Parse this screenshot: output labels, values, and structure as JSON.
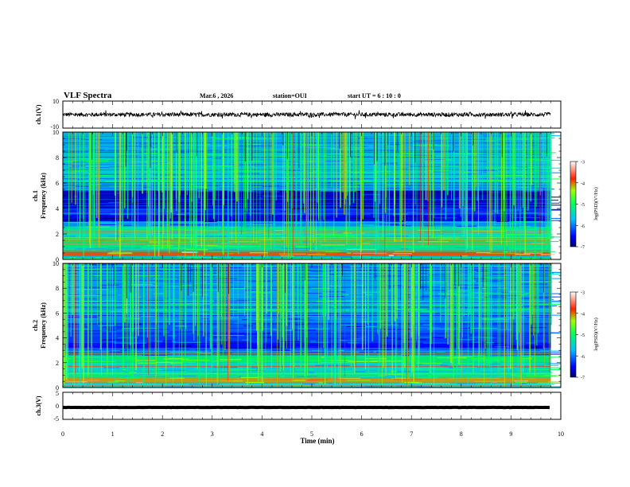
{
  "header": {
    "title": "VLF Spectra",
    "date": "Mar.6  , 2026",
    "station": "station=OUI",
    "start_ut": "start  UT  =   6  : 10 : 0"
  },
  "chart_data": {
    "type": "heatmap",
    "x_label": "Time  (min)",
    "x_range": [
      0,
      10
    ],
    "x_ticks": [
      "0",
      "1",
      "2",
      "3",
      "4",
      "5",
      "6",
      "7",
      "8",
      "9",
      "10"
    ],
    "data_end_min": 9.8,
    "panels": [
      {
        "id": "ch1-waveform",
        "type": "line",
        "ylabel": "ch.1(V)",
        "ylim": [
          -10,
          10
        ],
        "y_ticks": [
          "10",
          "-10"
        ],
        "trace_mean_v": 0,
        "trace_amplitude_v": 1.5
      },
      {
        "id": "ch1-spectrogram",
        "type": "heatmap",
        "ylabel_line1": "ch.1",
        "ylabel_line2": "Frequency  (kHz)",
        "ylim": [
          0,
          10
        ],
        "y_ticks": [
          "0",
          "2",
          "4",
          "6",
          "8",
          "10"
        ],
        "colorbar": {
          "label": "log(PSD)(V²/Hz)",
          "range": [
            -7,
            -3
          ],
          "ticks": [
            "-3",
            "-4",
            "-5",
            "-6",
            "-7"
          ]
        }
      },
      {
        "id": "ch2-spectrogram",
        "type": "heatmap",
        "ylabel_line1": "ch.2",
        "ylabel_line2": "Frequency  (kHz)",
        "ylim": [
          0,
          10
        ],
        "y_ticks": [
          "0",
          "2",
          "4",
          "6",
          "8",
          "10"
        ],
        "colorbar": {
          "label": "log(PSD)(V²/Hz)",
          "range": [
            -7,
            -3
          ],
          "ticks": [
            "-3",
            "-4",
            "-5",
            "-6",
            "-7"
          ]
        }
      },
      {
        "id": "ch3-waveform",
        "type": "line",
        "ylabel": "ch.3(V)",
        "ylim": [
          -5,
          5
        ],
        "y_ticks": [
          "5",
          "0",
          "-5"
        ],
        "trace_mean_v": -0.6,
        "trace_amplitude_v": 0.3
      }
    ]
  }
}
